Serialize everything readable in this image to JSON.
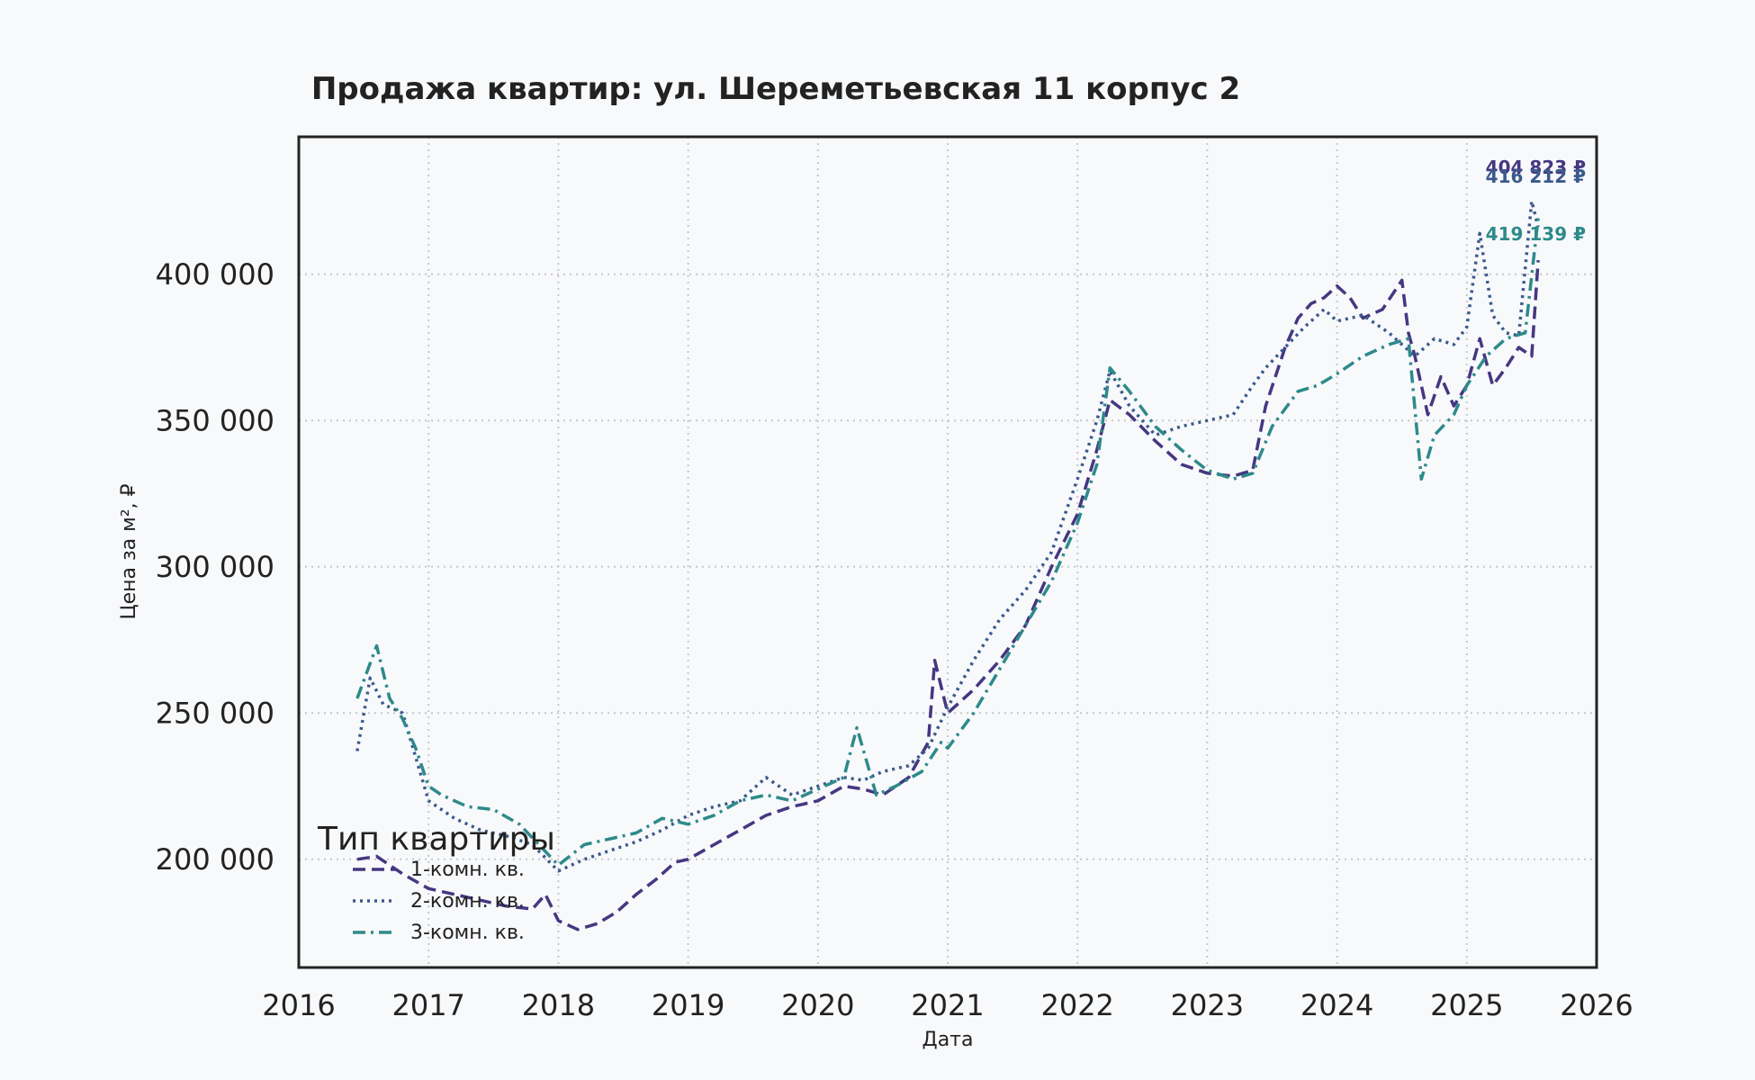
{
  "chart_data": {
    "type": "line",
    "title": "Продажа квартир: ул. Шереметьевская 11 корпус 2",
    "xlabel": "Дата",
    "ylabel": "Цена за м², ₽",
    "xlim": [
      2016,
      2026
    ],
    "ylim": [
      163000,
      447000
    ],
    "x_ticks": [
      "2016",
      "2017",
      "2018",
      "2019",
      "2020",
      "2021",
      "2022",
      "2023",
      "2024",
      "2025",
      "2026"
    ],
    "y_ticks": [
      {
        "value": 200000,
        "label": "200 000"
      },
      {
        "value": 250000,
        "label": "250 000"
      },
      {
        "value": 300000,
        "label": "300 000"
      },
      {
        "value": 350000,
        "label": "350 000"
      },
      {
        "value": 400000,
        "label": "400 000"
      }
    ],
    "grid": true,
    "legend": {
      "title": "Тип квартиры",
      "position": "lower-left"
    },
    "series": [
      {
        "name": "1-комн. кв.",
        "color": "#453781",
        "dash": "dashed",
        "end_label": "404 823 ₽",
        "x": [
          2016.45,
          2016.6,
          2016.8,
          2017.0,
          2017.2,
          2017.4,
          2017.6,
          2017.8,
          2017.9,
          2018.0,
          2018.15,
          2018.3,
          2018.45,
          2018.6,
          2018.75,
          2018.9,
          2019.0,
          2019.2,
          2019.4,
          2019.6,
          2019.8,
          2020.0,
          2020.2,
          2020.35,
          2020.5,
          2020.7,
          2020.85,
          2020.9,
          2021.0,
          2021.2,
          2021.4,
          2021.6,
          2021.8,
          2022.0,
          2022.15,
          2022.25,
          2022.4,
          2022.6,
          2022.8,
          2023.0,
          2023.2,
          2023.35,
          2023.45,
          2023.6,
          2023.7,
          2023.8,
          2023.9,
          2024.0,
          2024.1,
          2024.2,
          2024.35,
          2024.5,
          2024.55,
          2024.6,
          2024.7,
          2024.8,
          2024.9,
          2025.0,
          2025.1,
          2025.2,
          2025.3,
          2025.4,
          2025.5,
          2025.55
        ],
        "values": [
          200000,
          201000,
          195000,
          190000,
          188000,
          186000,
          184000,
          183000,
          188000,
          179000,
          176000,
          178000,
          182000,
          188000,
          193000,
          199000,
          200000,
          205000,
          210000,
          215000,
          218000,
          220000,
          225000,
          224000,
          222000,
          228000,
          240000,
          268000,
          250000,
          258000,
          268000,
          280000,
          300000,
          318000,
          340000,
          357000,
          352000,
          343000,
          335000,
          332000,
          331000,
          333000,
          355000,
          375000,
          385000,
          390000,
          392000,
          396000,
          392000,
          385000,
          388000,
          398000,
          380000,
          372000,
          352000,
          365000,
          355000,
          362000,
          378000,
          362000,
          368000,
          375000,
          372000,
          404823
        ]
      },
      {
        "name": "2-комн. кв.",
        "color": "#3b5a8c",
        "dash": "dotted",
        "end_label": "416 212 ₽",
        "x": [
          2016.45,
          2016.55,
          2016.65,
          2016.8,
          2017.0,
          2017.2,
          2017.4,
          2017.6,
          2017.8,
          2018.0,
          2018.2,
          2018.4,
          2018.6,
          2018.8,
          2019.0,
          2019.2,
          2019.4,
          2019.6,
          2019.8,
          2020.0,
          2020.2,
          2020.35,
          2020.5,
          2020.7,
          2020.85,
          2021.0,
          2021.2,
          2021.4,
          2021.6,
          2021.8,
          2022.0,
          2022.15,
          2022.25,
          2022.4,
          2022.6,
          2022.8,
          2023.0,
          2023.2,
          2023.35,
          2023.45,
          2023.6,
          2023.75,
          2023.9,
          2024.0,
          2024.2,
          2024.4,
          2024.6,
          2024.75,
          2024.9,
          2025.0,
          2025.1,
          2025.2,
          2025.3,
          2025.4,
          2025.5,
          2025.55
        ],
        "values": [
          237000,
          262000,
          253000,
          250000,
          220000,
          214000,
          210000,
          208000,
          205000,
          196000,
          200000,
          203000,
          206000,
          210000,
          215000,
          218000,
          220000,
          228000,
          222000,
          225000,
          228000,
          227000,
          230000,
          232000,
          238000,
          252000,
          268000,
          282000,
          292000,
          305000,
          330000,
          350000,
          367000,
          355000,
          345000,
          348000,
          350000,
          352000,
          362000,
          368000,
          375000,
          382000,
          388000,
          384000,
          386000,
          380000,
          372000,
          378000,
          376000,
          382000,
          414000,
          386000,
          380000,
          379000,
          425000,
          416212
        ]
      },
      {
        "name": "3-комн. кв.",
        "color": "#2d8a8a",
        "dash": "dashdot",
        "end_label": "419 139 ₽",
        "x": [
          2016.45,
          2016.6,
          2016.7,
          2016.8,
          2016.9,
          2017.0,
          2017.1,
          2017.3,
          2017.5,
          2017.7,
          2017.85,
          2018.0,
          2018.2,
          2018.4,
          2018.6,
          2018.8,
          2019.0,
          2019.2,
          2019.4,
          2019.6,
          2019.8,
          2020.0,
          2020.2,
          2020.3,
          2020.45,
          2020.6,
          2020.8,
          2020.95,
          2021.0,
          2021.2,
          2021.4,
          2021.6,
          2021.8,
          2022.0,
          2022.15,
          2022.25,
          2022.4,
          2022.6,
          2022.8,
          2023.0,
          2023.2,
          2023.35,
          2023.5,
          2023.7,
          2023.85,
          2024.0,
          2024.2,
          2024.4,
          2024.55,
          2024.65,
          2024.75,
          2024.9,
          2025.0,
          2025.15,
          2025.3,
          2025.45,
          2025.55
        ],
        "values": [
          255000,
          273000,
          255000,
          248000,
          238000,
          225000,
          222000,
          218000,
          217000,
          212000,
          205000,
          198000,
          205000,
          207000,
          209000,
          214000,
          212000,
          215000,
          220000,
          222000,
          220000,
          224000,
          228000,
          245000,
          222000,
          225000,
          230000,
          240000,
          238000,
          250000,
          265000,
          280000,
          295000,
          315000,
          335000,
          368000,
          360000,
          348000,
          340000,
          333000,
          330000,
          332000,
          348000,
          360000,
          362000,
          366000,
          372000,
          376000,
          378000,
          330000,
          345000,
          352000,
          362000,
          372000,
          378000,
          380000,
          419139
        ]
      }
    ]
  }
}
